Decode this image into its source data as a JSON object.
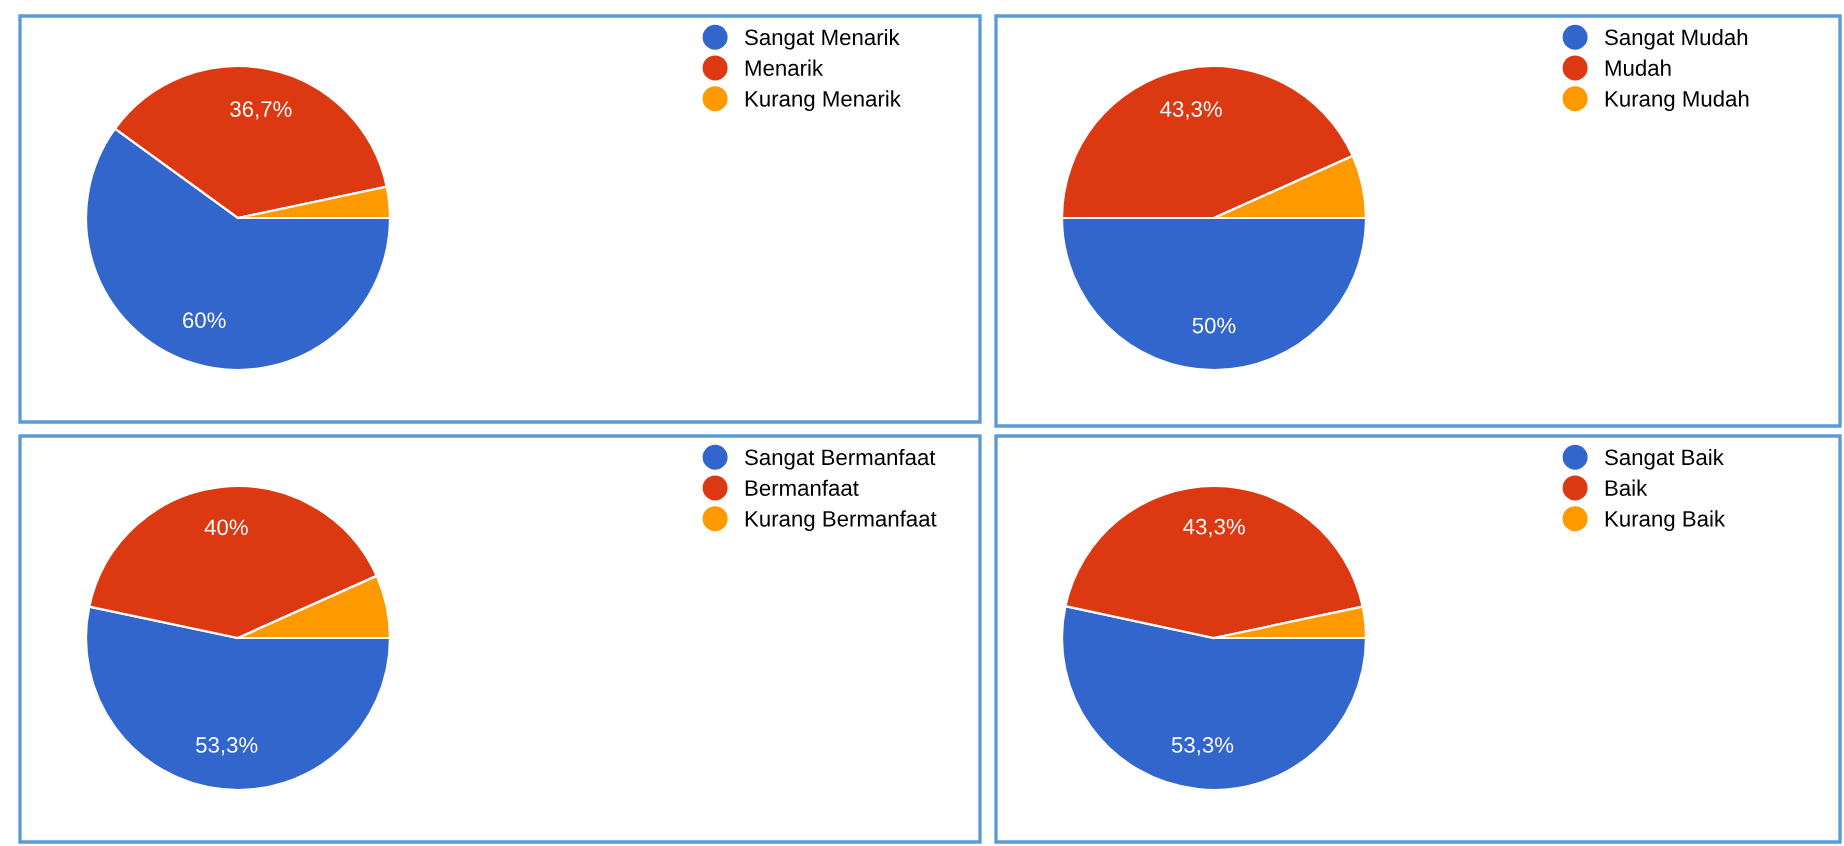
{
  "chart_data": [
    {
      "type": "pie",
      "categories": [
        "Sangat Menarik",
        "Menarik",
        "Kurang Menarik"
      ],
      "values": [
        60,
        36.7,
        3.3
      ],
      "colors": [
        "#3366cc",
        "#dc3912",
        "#ff9900"
      ],
      "value_labels": [
        "60%",
        "36,7%",
        null
      ],
      "legend": "top right"
    },
    {
      "type": "pie",
      "categories": [
        "Sangat Mudah",
        "Mudah",
        "Kurang Mudah"
      ],
      "values": [
        50,
        43.3,
        6.7
      ],
      "colors": [
        "#3366cc",
        "#dc3912",
        "#ff9900"
      ],
      "value_labels": [
        "50%",
        "43,3%",
        null
      ],
      "legend": "top right"
    },
    {
      "type": "pie",
      "categories": [
        "Sangat Bermanfaat",
        "Bermanfaat",
        "Kurang Bermanfaat"
      ],
      "values": [
        53.3,
        40,
        6.7
      ],
      "colors": [
        "#3366cc",
        "#dc3912",
        "#ff9900"
      ],
      "value_labels": [
        "53,3%",
        "40%",
        null
      ],
      "legend": "top right"
    },
    {
      "type": "pie",
      "categories": [
        "Sangat Baik",
        "Baik",
        "Kurang Baik"
      ],
      "values": [
        53.3,
        43.3,
        3.3
      ],
      "colors": [
        "#3366cc",
        "#dc3912",
        "#ff9900"
      ],
      "value_labels": [
        "53,3%",
        "43,3%",
        null
      ],
      "legend": "top right"
    }
  ]
}
